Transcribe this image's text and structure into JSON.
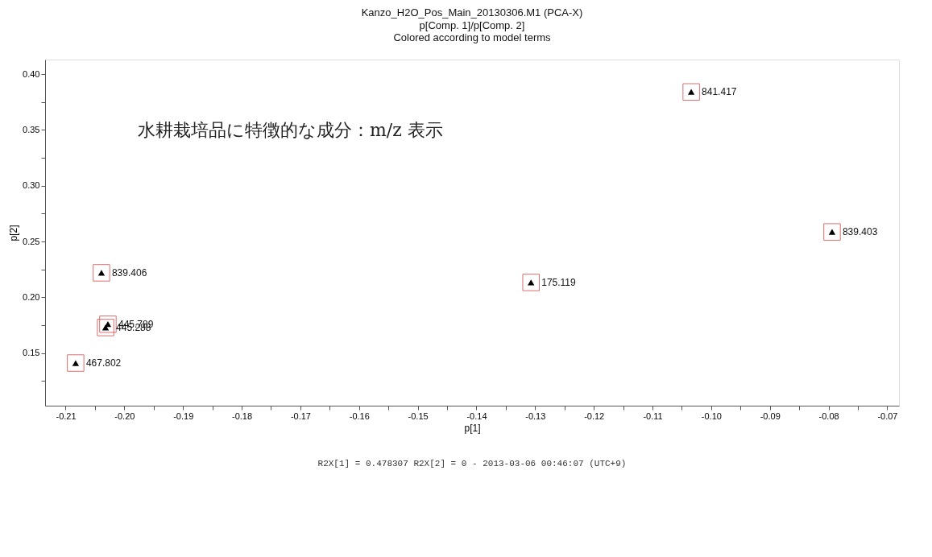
{
  "chart_data": {
    "type": "scatter",
    "title": "Kanzo_H2O_Pos_Main_20130306.M1 (PCA-X)",
    "subtitle": "p[Comp. 1]/p[Comp. 2]\nColored according to model terms",
    "xlabel": "p[1]",
    "ylabel": "p[2]",
    "x": [
      -0.2039,
      -0.2028,
      -0.2032,
      -0.2083,
      -0.1307,
      -0.1034,
      -0.0794
    ],
    "series": [
      {
        "color": "#000000",
        "values": [
          0.222,
          0.176,
          0.173,
          0.1412,
          0.2134,
          0.384,
          0.2586
        ]
      }
    ],
    "annotations": [
      {
        "text": "839.406",
        "x": -0.2039,
        "y": 0.222
      },
      {
        "text": "445.789",
        "x": -0.2028,
        "y": 0.176
      },
      {
        "text": "445.288",
        "x": -0.2032,
        "y": 0.173
      },
      {
        "text": "467.802",
        "x": -0.2083,
        "y": 0.1412
      },
      {
        "text": "175.119",
        "x": -0.1307,
        "y": 0.2134
      },
      {
        "text": "841.417",
        "x": -0.1034,
        "y": 0.384
      },
      {
        "text": "839.403",
        "x": -0.0794,
        "y": 0.2586
      },
      "水耕栽培品に特徴的な成分：m/z 表示",
      "R2X[1] = 0.478307 R2X[2] = 0 - 2013-03-06 00:46:07 (UTC+9)"
    ],
    "xlim": [
      -0.2135,
      -0.068
    ],
    "ylim": [
      0.103,
      0.413
    ],
    "xticks": [
      -0.21,
      {
        "value": -0.205,
        "label": null
      },
      {
        "value": -0.2,
        "label": "-0.20"
      },
      {
        "value": -0.195,
        "label": null
      },
      -0.19,
      {
        "value": -0.185,
        "label": null
      },
      -0.18,
      {
        "value": -0.175,
        "label": null
      },
      -0.17,
      {
        "value": -0.165,
        "label": null
      },
      -0.16,
      {
        "value": -0.155,
        "label": null
      },
      -0.15,
      {
        "value": -0.145,
        "label": null
      },
      -0.14,
      {
        "value": -0.135,
        "label": null
      },
      -0.13,
      {
        "value": -0.125,
        "label": null
      },
      -0.12,
      {
        "value": -0.115,
        "label": null
      },
      -0.11,
      {
        "value": -0.105,
        "label": null
      },
      {
        "value": -0.1,
        "label": "-0.10"
      },
      {
        "value": -0.095,
        "label": null
      },
      -0.09,
      {
        "value": -0.085,
        "label": null
      },
      -0.08,
      {
        "value": -0.075,
        "label": null
      },
      -0.07
    ],
    "yticks": [
      {
        "value": 0.125,
        "label": null
      },
      0.15,
      {
        "value": 0.175,
        "label": null
      },
      {
        "value": 0.2,
        "label": "0.20"
      },
      {
        "value": 0.225,
        "label": null
      },
      0.25,
      {
        "value": 0.275,
        "label": null
      },
      {
        "value": 0.3,
        "label": "0.30"
      },
      {
        "value": 0.325,
        "label": null
      },
      0.35,
      {
        "value": 0.375,
        "label": null
      },
      {
        "value": 0.4,
        "label": "0.40"
      }
    ],
    "marker": "triangle",
    "grid": false
  }
}
